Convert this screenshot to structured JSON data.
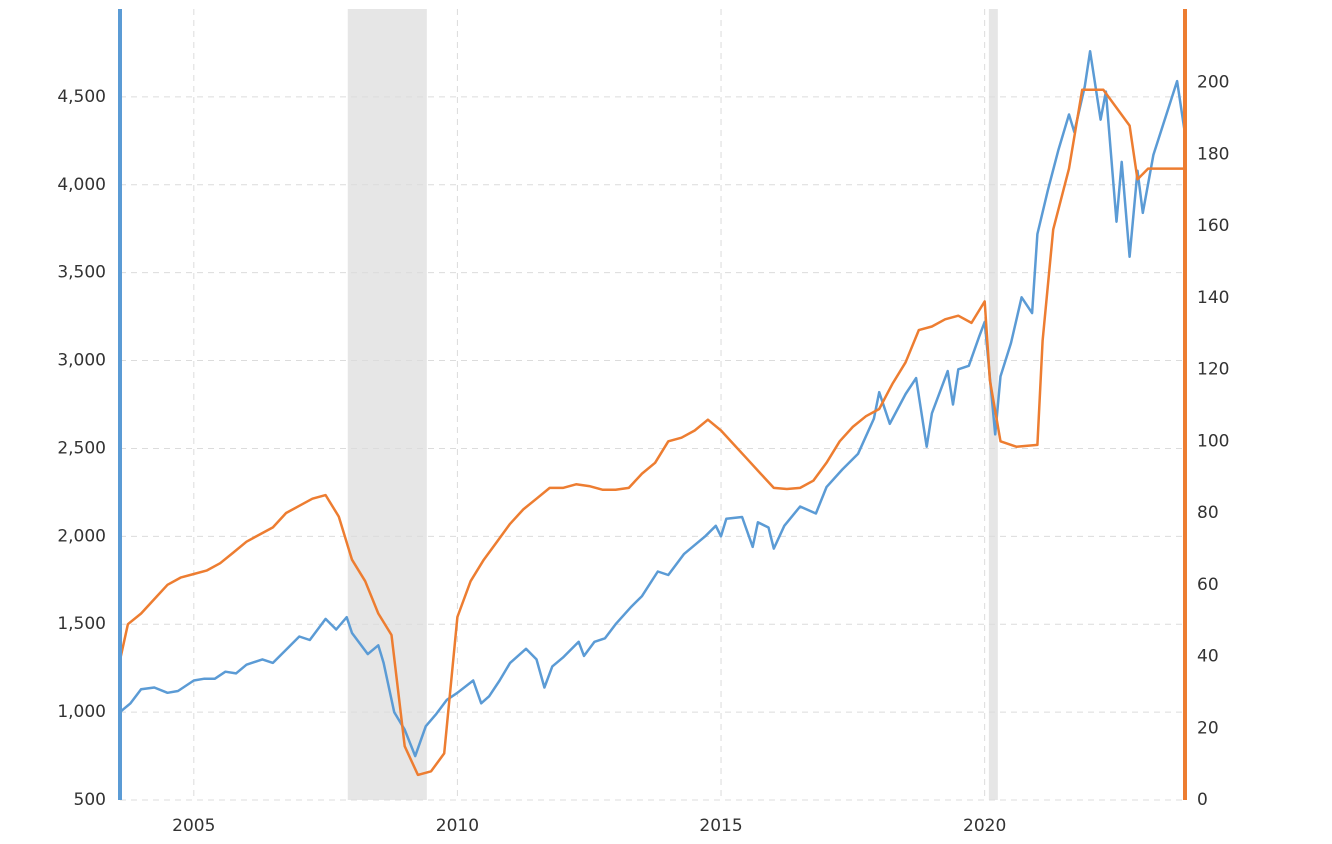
{
  "chart_data": {
    "type": "line",
    "xlim": [
      2003.6,
      2023.8
    ],
    "xticks": [
      2005,
      2010,
      2015,
      2020
    ],
    "ylim": [
      500,
      5000
    ],
    "yticks": [
      500,
      {
        "value": 1000,
        "label": "1,000"
      },
      {
        "value": 1500,
        "label": "1,500"
      },
      {
        "value": 2000,
        "label": "2,000"
      },
      {
        "value": 2500,
        "label": "2,500"
      },
      {
        "value": 3000,
        "label": "3,000"
      },
      {
        "value": 3500,
        "label": "3,500"
      },
      {
        "value": 4000,
        "label": "4,000"
      },
      {
        "value": 4500,
        "label": "4,500"
      }
    ],
    "y2lim": [
      0,
      220.5
    ],
    "y2ticks": [
      0,
      20,
      40,
      60,
      80,
      100,
      120,
      140,
      160,
      180,
      200
    ],
    "grid": true,
    "bands": [
      {
        "from": 2007.92,
        "to": 2009.42
      },
      {
        "from": 2020.08,
        "to": 2020.25
      }
    ],
    "series": [
      {
        "color": "#5b9bd5",
        "x": [
          2003.6,
          2003.8,
          2004.0,
          2004.25,
          2004.5,
          2004.7,
          2005.0,
          2005.2,
          2005.4,
          2005.6,
          2005.8,
          2006.0,
          2006.3,
          2006.5,
          2006.8,
          2007.0,
          2007.2,
          2007.5,
          2007.7,
          2007.9,
          2008.0,
          2008.3,
          2008.5,
          2008.6,
          2008.8,
          2009.0,
          2009.2,
          2009.4,
          2009.6,
          2009.8,
          2010.0,
          2010.3,
          2010.45,
          2010.6,
          2010.8,
          2011.0,
          2011.3,
          2011.5,
          2011.65,
          2011.8,
          2012.0,
          2012.3,
          2012.4,
          2012.6,
          2012.8,
          2013.0,
          2013.3,
          2013.5,
          2013.8,
          2014.0,
          2014.3,
          2014.5,
          2014.7,
          2014.9,
          2015.0,
          2015.1,
          2015.4,
          2015.6,
          2015.7,
          2015.9,
          2016.0,
          2016.2,
          2016.5,
          2016.8,
          2017.0,
          2017.3,
          2017.6,
          2017.9,
          2018.0,
          2018.2,
          2018.5,
          2018.7,
          2018.9,
          2019.0,
          2019.3,
          2019.4,
          2019.5,
          2019.7,
          2019.9,
          2020.0,
          2020.2,
          2020.3,
          2020.5,
          2020.7,
          2020.9,
          2021.0,
          2021.2,
          2021.4,
          2021.6,
          2021.7,
          2021.9,
          2022.0,
          2022.2,
          2022.3,
          2022.5,
          2022.6,
          2022.75,
          2022.9,
          2023.0,
          2023.2,
          2023.5,
          2023.65,
          2023.8
        ],
        "values": [
          1000,
          1050,
          1130,
          1140,
          1110,
          1120,
          1180,
          1190,
          1190,
          1230,
          1220,
          1270,
          1300,
          1280,
          1370,
          1430,
          1410,
          1530,
          1470,
          1540,
          1450,
          1330,
          1380,
          1280,
          1000,
          900,
          750,
          920,
          990,
          1070,
          1110,
          1180,
          1050,
          1090,
          1180,
          1280,
          1360,
          1300,
          1140,
          1260,
          1310,
          1400,
          1320,
          1400,
          1420,
          1500,
          1600,
          1660,
          1800,
          1780,
          1900,
          1950,
          2000,
          2060,
          2000,
          2100,
          2110,
          1940,
          2080,
          2050,
          1930,
          2060,
          2170,
          2130,
          2280,
          2380,
          2470,
          2670,
          2820,
          2640,
          2810,
          2900,
          2510,
          2700,
          2940,
          2750,
          2950,
          2970,
          3140,
          3220,
          2580,
          2910,
          3100,
          3360,
          3270,
          3720,
          3970,
          4200,
          4400,
          4300,
          4560,
          4760,
          4370,
          4530,
          3790,
          4130,
          3590,
          4080,
          3840,
          4170,
          4450,
          4590,
          4290
        ]
      },
      {
        "color": "#ed7d31",
        "axis": "y2",
        "x": [
          2003.6,
          2003.75,
          2004.0,
          2004.25,
          2004.5,
          2004.75,
          2005.0,
          2005.25,
          2005.5,
          2005.75,
          2006.0,
          2006.25,
          2006.5,
          2006.75,
          2007.0,
          2007.25,
          2007.5,
          2007.75,
          2008.0,
          2008.25,
          2008.5,
          2008.75,
          2009.0,
          2009.25,
          2009.5,
          2009.75,
          2010.0,
          2010.25,
          2010.5,
          2010.75,
          2011.0,
          2011.25,
          2011.5,
          2011.75,
          2012.0,
          2012.25,
          2012.5,
          2012.75,
          2013.0,
          2013.25,
          2013.5,
          2013.75,
          2014.0,
          2014.25,
          2014.5,
          2014.75,
          2015.0,
          2015.25,
          2015.5,
          2015.75,
          2016.0,
          2016.25,
          2016.5,
          2016.75,
          2017.0,
          2017.25,
          2017.5,
          2017.75,
          2018.0,
          2018.25,
          2018.5,
          2018.75,
          2019.0,
          2019.25,
          2019.5,
          2019.75,
          2020.0,
          2020.1,
          2020.3,
          2020.6,
          2021.0,
          2021.1,
          2021.3,
          2021.6,
          2021.85,
          2022.25,
          2022.5,
          2022.75,
          2022.9,
          2023.1,
          2023.8
        ],
        "values": [
          39,
          49,
          52,
          56,
          60,
          62,
          63,
          64,
          66,
          69,
          72,
          74,
          76,
          80,
          82,
          84,
          85,
          79,
          67,
          61,
          52,
          46,
          15,
          7,
          8,
          13,
          51,
          61,
          67,
          72,
          77,
          81,
          84,
          87,
          87,
          88,
          87.5,
          86.5,
          86.5,
          87,
          91,
          94,
          100,
          101,
          103,
          106,
          103,
          99,
          95,
          91,
          87,
          86.7,
          87,
          89,
          94,
          100,
          104,
          107,
          109,
          116,
          122,
          131,
          132,
          134,
          135,
          133,
          139,
          117,
          100,
          98.5,
          99,
          128,
          159,
          176,
          198,
          198,
          193,
          188,
          173,
          176,
          176
        ]
      }
    ]
  }
}
